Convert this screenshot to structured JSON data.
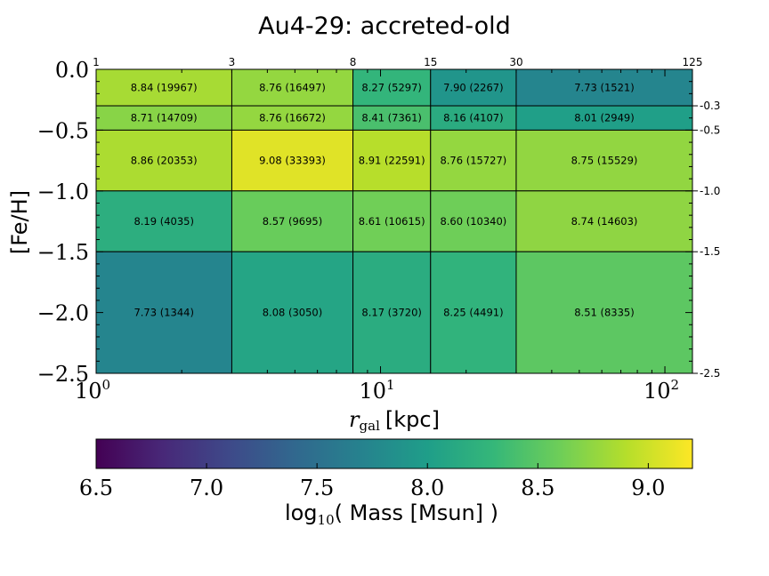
{
  "chart_data": {
    "type": "heatmap",
    "title": "Au4-29: accreted-old",
    "xlabel_var": "r",
    "xlabel_sub": "gal",
    "xlabel_unit": "[kpc]",
    "ylabel": "[Fe/H]",
    "x_scale": "log",
    "xlim": [
      1,
      125
    ],
    "ylim": [
      -2.5,
      0.0
    ],
    "x_edges": [
      1,
      3,
      8,
      15,
      30,
      125
    ],
    "y_edges": [
      0.0,
      -0.3,
      -0.5,
      -1.0,
      -1.5,
      -2.5
    ],
    "top_tick_labels": [
      "1",
      "3",
      "8",
      "15",
      "30",
      "125"
    ],
    "right_tick_labels": [
      "-0.3",
      "-0.5",
      "-1.0",
      "-1.5",
      "-2.5"
    ],
    "x_major_ticks": [
      {
        "value": 1,
        "base": "10",
        "exp": "0"
      },
      {
        "value": 10,
        "base": "10",
        "exp": "1"
      },
      {
        "value": 100,
        "base": "10",
        "exp": "2"
      }
    ],
    "y_major_ticks": [
      {
        "value": 0.0,
        "label": "0.0"
      },
      {
        "value": -0.5,
        "label": "−0.5"
      },
      {
        "value": -1.0,
        "label": "−1.0"
      },
      {
        "value": -1.5,
        "label": "−1.5"
      },
      {
        "value": -2.0,
        "label": "−2.0"
      },
      {
        "value": -2.5,
        "label": "−2.5"
      }
    ],
    "cells": [
      [
        {
          "v": 8.84,
          "label": "8.84 (19967)"
        },
        {
          "v": 8.76,
          "label": "8.76 (16497)"
        },
        {
          "v": 8.27,
          "label": "8.27 (5297)"
        },
        {
          "v": 7.9,
          "label": "7.90 (2267)"
        },
        {
          "v": 7.73,
          "label": "7.73 (1521)"
        }
      ],
      [
        {
          "v": 8.71,
          "label": "8.71 (14709)"
        },
        {
          "v": 8.76,
          "label": "8.76 (16672)"
        },
        {
          "v": 8.41,
          "label": "8.41 (7361)"
        },
        {
          "v": 8.16,
          "label": "8.16 (4107)"
        },
        {
          "v": 8.01,
          "label": "8.01 (2949)"
        }
      ],
      [
        {
          "v": 8.86,
          "label": "8.86 (20353)"
        },
        {
          "v": 9.08,
          "label": "9.08 (33393)"
        },
        {
          "v": 8.91,
          "label": "8.91 (22591)"
        },
        {
          "v": 8.76,
          "label": "8.76 (15727)"
        },
        {
          "v": 8.75,
          "label": "8.75 (15529)"
        }
      ],
      [
        {
          "v": 8.19,
          "label": "8.19 (4035)"
        },
        {
          "v": 8.57,
          "label": "8.57 (9695)"
        },
        {
          "v": 8.61,
          "label": "8.61 (10615)"
        },
        {
          "v": 8.6,
          "label": "8.60 (10340)"
        },
        {
          "v": 8.74,
          "label": "8.74 (14603)"
        }
      ],
      [
        {
          "v": 7.73,
          "label": "7.73 (1344)"
        },
        {
          "v": 8.08,
          "label": "8.08 (3050)"
        },
        {
          "v": 8.17,
          "label": "8.17 (3720)"
        },
        {
          "v": 8.25,
          "label": "8.25 (4491)"
        },
        {
          "v": 8.51,
          "label": "8.51 (8335)"
        }
      ]
    ],
    "colorbar": {
      "colormap": "viridis",
      "vmin": 6.5,
      "vmax": 9.2,
      "ticks": [
        6.5,
        7.0,
        7.5,
        8.0,
        8.5,
        9.0
      ],
      "tick_labels": [
        "6.5",
        "7.0",
        "7.5",
        "8.0",
        "8.5",
        "9.0"
      ],
      "label_prefix": "log",
      "label_sub": "10",
      "label_suffix": "( Mass [Msun] )"
    },
    "viridis_stops": [
      "#440154",
      "#482878",
      "#3e4989",
      "#31688e",
      "#26828e",
      "#1f9e89",
      "#35b779",
      "#6ece58",
      "#b5de2b",
      "#fde725"
    ]
  }
}
